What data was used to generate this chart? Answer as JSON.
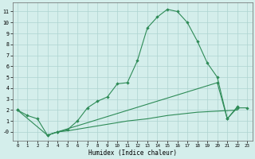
{
  "xlabel": "Humidex (Indice chaleur)",
  "line_color": "#2e8b57",
  "bg_color": "#d4eeeb",
  "grid_color": "#aed4d0",
  "ylim": [
    -0.8,
    11.8
  ],
  "xlim": [
    -0.5,
    23.5
  ],
  "yticks": [
    0,
    1,
    2,
    3,
    4,
    5,
    6,
    7,
    8,
    9,
    10,
    11
  ],
  "ytick_labels": [
    "-0",
    "1",
    "2",
    "3",
    "4",
    "5",
    "6",
    "7",
    "8",
    "9",
    "10",
    "11"
  ],
  "xticks": [
    0,
    1,
    2,
    3,
    4,
    5,
    6,
    7,
    8,
    9,
    10,
    11,
    12,
    13,
    14,
    15,
    16,
    17,
    18,
    19,
    20,
    21,
    22,
    23
  ],
  "x_main": [
    0,
    1,
    2,
    3,
    4,
    5,
    6,
    7,
    8,
    9,
    10,
    11,
    12,
    13,
    14,
    15,
    16,
    17,
    18,
    19,
    20,
    21,
    22
  ],
  "y_main": [
    2.0,
    1.5,
    1.2,
    -0.3,
    0.0,
    0.2,
    1.0,
    2.2,
    2.8,
    3.2,
    4.4,
    4.5,
    6.5,
    9.5,
    10.5,
    11.2,
    11.0,
    10.0,
    8.3,
    6.3,
    5.0,
    1.2,
    2.3
  ],
  "x_line2": [
    0,
    3,
    4,
    20,
    21,
    22,
    23
  ],
  "y_line2": [
    2.0,
    -0.3,
    0.0,
    4.5,
    1.2,
    2.2,
    2.2
  ],
  "x_line3": [
    3,
    4,
    5,
    6,
    7,
    8,
    9,
    10,
    11,
    12,
    13,
    14,
    15,
    16,
    17,
    18,
    19,
    20,
    21,
    22
  ],
  "y_line3": [
    -0.3,
    0.0,
    0.1,
    0.25,
    0.4,
    0.55,
    0.7,
    0.85,
    1.0,
    1.1,
    1.2,
    1.35,
    1.5,
    1.6,
    1.7,
    1.8,
    1.85,
    1.9,
    1.95,
    2.0
  ]
}
